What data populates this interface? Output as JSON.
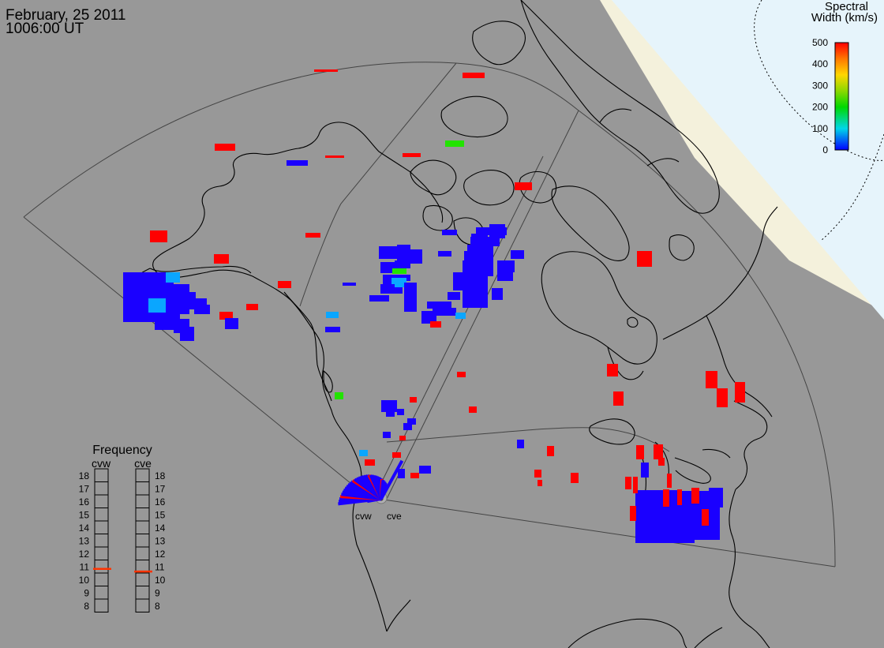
{
  "header": {
    "date": "February, 25 2011",
    "time": "1006:00 UT"
  },
  "colorbar": {
    "title_line1": "Spectral",
    "title_line2": "Width (km/s)",
    "ticks": [
      "500",
      "400",
      "300",
      "200",
      "100",
      "0"
    ],
    "min": 0,
    "max": 500
  },
  "radars": {
    "west": "cvw",
    "east": "cve"
  },
  "frequency_panel": {
    "title": "Frequency",
    "left_label": "cvw",
    "right_label": "cve",
    "ticks": [
      "18",
      "17",
      "16",
      "15",
      "14",
      "13",
      "12",
      "11",
      "10",
      "9",
      "8"
    ],
    "cvw_value": 10.8,
    "cve_value": 10.6,
    "marker_color": "#ff3300"
  },
  "colors": {
    "background": "#989898",
    "daylight_region": "#e6f4fb",
    "terminator_band": "#f4f1dc",
    "coastline": "#000000",
    "fov": "#444444"
  },
  "echoes": [
    {
      "cells": [
        [
          398,
          88,
          428,
          91,
          "red"
        ],
        [
          586,
          92,
          614,
          99,
          "red"
        ],
        [
          272,
          182,
          298,
          191,
          "red"
        ],
        [
          363,
          203,
          390,
          210,
          "blue"
        ],
        [
          412,
          197,
          436,
          200,
          "red"
        ],
        [
          510,
          194,
          533,
          199,
          "red"
        ],
        [
          564,
          178,
          588,
          186,
          "green"
        ],
        [
          652,
          231,
          674,
          241,
          "red"
        ],
        [
          190,
          292,
          212,
          307,
          "red"
        ],
        [
          387,
          295,
          406,
          301,
          "red"
        ],
        [
          271,
          322,
          290,
          334,
          "red"
        ],
        [
          352,
          356,
          369,
          365,
          "red"
        ],
        [
          312,
          385,
          327,
          393,
          "red"
        ],
        [
          278,
          395,
          295,
          405,
          "red"
        ],
        [
          285,
          403,
          302,
          417,
          "blue"
        ],
        [
          434,
          358,
          451,
          362,
          "blue"
        ],
        [
          413,
          395,
          429,
          403,
          "lightblue"
        ],
        [
          412,
          414,
          431,
          421,
          "blue"
        ],
        [
          807,
          318,
          826,
          338,
          "red"
        ],
        [
          769,
          461,
          783,
          477,
          "red"
        ],
        [
          777,
          496,
          790,
          514,
          "red"
        ],
        [
          894,
          470,
          909,
          492,
          "red"
        ],
        [
          908,
          492,
          922,
          516,
          "red"
        ],
        [
          931,
          484,
          944,
          510,
          "red"
        ],
        [
          579,
          471,
          590,
          478,
          "red"
        ],
        [
          594,
          515,
          604,
          523,
          "red"
        ],
        [
          424,
          497,
          435,
          506,
          "green"
        ],
        [
          655,
          557,
          664,
          568,
          "blue"
        ],
        [
          693,
          565,
          702,
          578,
          "red"
        ],
        [
          723,
          599,
          733,
          612,
          "red"
        ],
        [
          677,
          595,
          686,
          605,
          "red"
        ],
        [
          681,
          608,
          687,
          616,
          "red"
        ]
      ]
    },
    {
      "cells": [
        [
          480,
          312,
          510,
          328,
          "blue"
        ],
        [
          503,
          310,
          520,
          330,
          "blue"
        ],
        [
          516,
          316,
          535,
          334,
          "blue"
        ],
        [
          482,
          332,
          500,
          346,
          "blue"
        ],
        [
          500,
          330,
          520,
          340,
          "blue"
        ],
        [
          497,
          340,
          515,
          347,
          "green"
        ],
        [
          485,
          348,
          506,
          360,
          "blue"
        ],
        [
          503,
          348,
          520,
          356,
          "blue"
        ],
        [
          496,
          352,
          515,
          364,
          "lightblue"
        ],
        [
          482,
          360,
          500,
          372,
          "blue"
        ],
        [
          512,
          358,
          528,
          395,
          "blue"
        ],
        [
          468,
          374,
          493,
          382,
          "blue"
        ],
        [
          497,
          364,
          510,
          372,
          "blue"
        ],
        [
          555,
          318,
          572,
          325,
          "blue"
        ],
        [
          560,
          291,
          579,
          298,
          "blue"
        ],
        [
          574,
          345,
          594,
          368,
          "blue"
        ],
        [
          597,
          296,
          618,
          310,
          "blue"
        ],
        [
          588,
          318,
          608,
          332,
          "blue"
        ],
        [
          603,
          288,
          642,
          298,
          "blue"
        ],
        [
          620,
          284,
          640,
          302,
          "blue"
        ],
        [
          596,
          300,
          633,
          312,
          "blue"
        ],
        [
          586,
          330,
          618,
          390,
          "blue"
        ],
        [
          592,
          310,
          625,
          350,
          "blue"
        ],
        [
          630,
          330,
          652,
          345,
          "blue"
        ],
        [
          630,
          345,
          650,
          356,
          "blue"
        ],
        [
          623,
          365,
          637,
          380,
          "blue"
        ],
        [
          647,
          317,
          664,
          328,
          "blue"
        ],
        [
          541,
          382,
          572,
          391,
          "blue"
        ],
        [
          548,
          390,
          578,
          400,
          "blue"
        ],
        [
          534,
          394,
          553,
          410,
          "blue"
        ],
        [
          545,
          407,
          559,
          415,
          "red"
        ],
        [
          577,
          396,
          590,
          404,
          "lightblue"
        ],
        [
          567,
          370,
          583,
          380,
          "blue"
        ]
      ]
    },
    {
      "cells": [
        [
          156,
          345,
          220,
          408,
          "blue"
        ],
        [
          178,
          360,
          240,
          398,
          "blue"
        ],
        [
          196,
          392,
          228,
          418,
          "blue"
        ],
        [
          188,
          378,
          210,
          396,
          "lightblue"
        ],
        [
          210,
          345,
          228,
          358,
          "lightblue"
        ],
        [
          218,
          360,
          238,
          374,
          "blue"
        ],
        [
          230,
          370,
          248,
          382,
          "blue"
        ],
        [
          240,
          378,
          262,
          392,
          "blue"
        ],
        [
          246,
          386,
          266,
          398,
          "blue"
        ],
        [
          220,
          404,
          240,
          422,
          "blue"
        ],
        [
          228,
          414,
          246,
          432,
          "blue"
        ]
      ]
    },
    {
      "cells": [
        [
          483,
          507,
          503,
          522,
          "blue"
        ],
        [
          489,
          516,
          500,
          528,
          "blue"
        ],
        [
          503,
          518,
          512,
          526,
          "blue"
        ],
        [
          511,
          536,
          522,
          545,
          "blue"
        ],
        [
          516,
          530,
          527,
          538,
          "blue"
        ],
        [
          519,
          503,
          528,
          510,
          "red"
        ],
        [
          485,
          547,
          495,
          555,
          "blue"
        ],
        [
          506,
          552,
          514,
          558,
          "red"
        ],
        [
          455,
          570,
          466,
          578,
          "lightblue"
        ],
        [
          462,
          582,
          475,
          590,
          "red"
        ],
        [
          497,
          573,
          508,
          580,
          "red"
        ],
        [
          531,
          590,
          546,
          600,
          "blue"
        ],
        [
          520,
          599,
          531,
          606,
          "red"
        ],
        [
          504,
          594,
          513,
          606,
          "blue"
        ]
      ]
    },
    {
      "cells": [
        [
          805,
          622,
          912,
          684,
          "blue"
        ],
        [
          805,
          662,
          880,
          688,
          "blue"
        ],
        [
          805,
          621,
          860,
          640,
          "blue"
        ],
        [
          898,
          618,
          916,
          643,
          "blue"
        ],
        [
          876,
          618,
          886,
          638,
          "red"
        ],
        [
          845,
          600,
          851,
          618,
          "red"
        ],
        [
          840,
          620,
          848,
          642,
          "red"
        ],
        [
          858,
          620,
          864,
          640,
          "red"
        ],
        [
          802,
          604,
          808,
          625,
          "red"
        ],
        [
          798,
          641,
          806,
          660,
          "red"
        ],
        [
          889,
          645,
          898,
          666,
          "red"
        ],
        [
          828,
          563,
          840,
          582,
          "red"
        ],
        [
          806,
          564,
          816,
          582,
          "red"
        ],
        [
          812,
          586,
          822,
          605,
          "blue"
        ],
        [
          834,
          580,
          842,
          590,
          "red"
        ],
        [
          792,
          604,
          800,
          620,
          "red"
        ]
      ]
    }
  ]
}
